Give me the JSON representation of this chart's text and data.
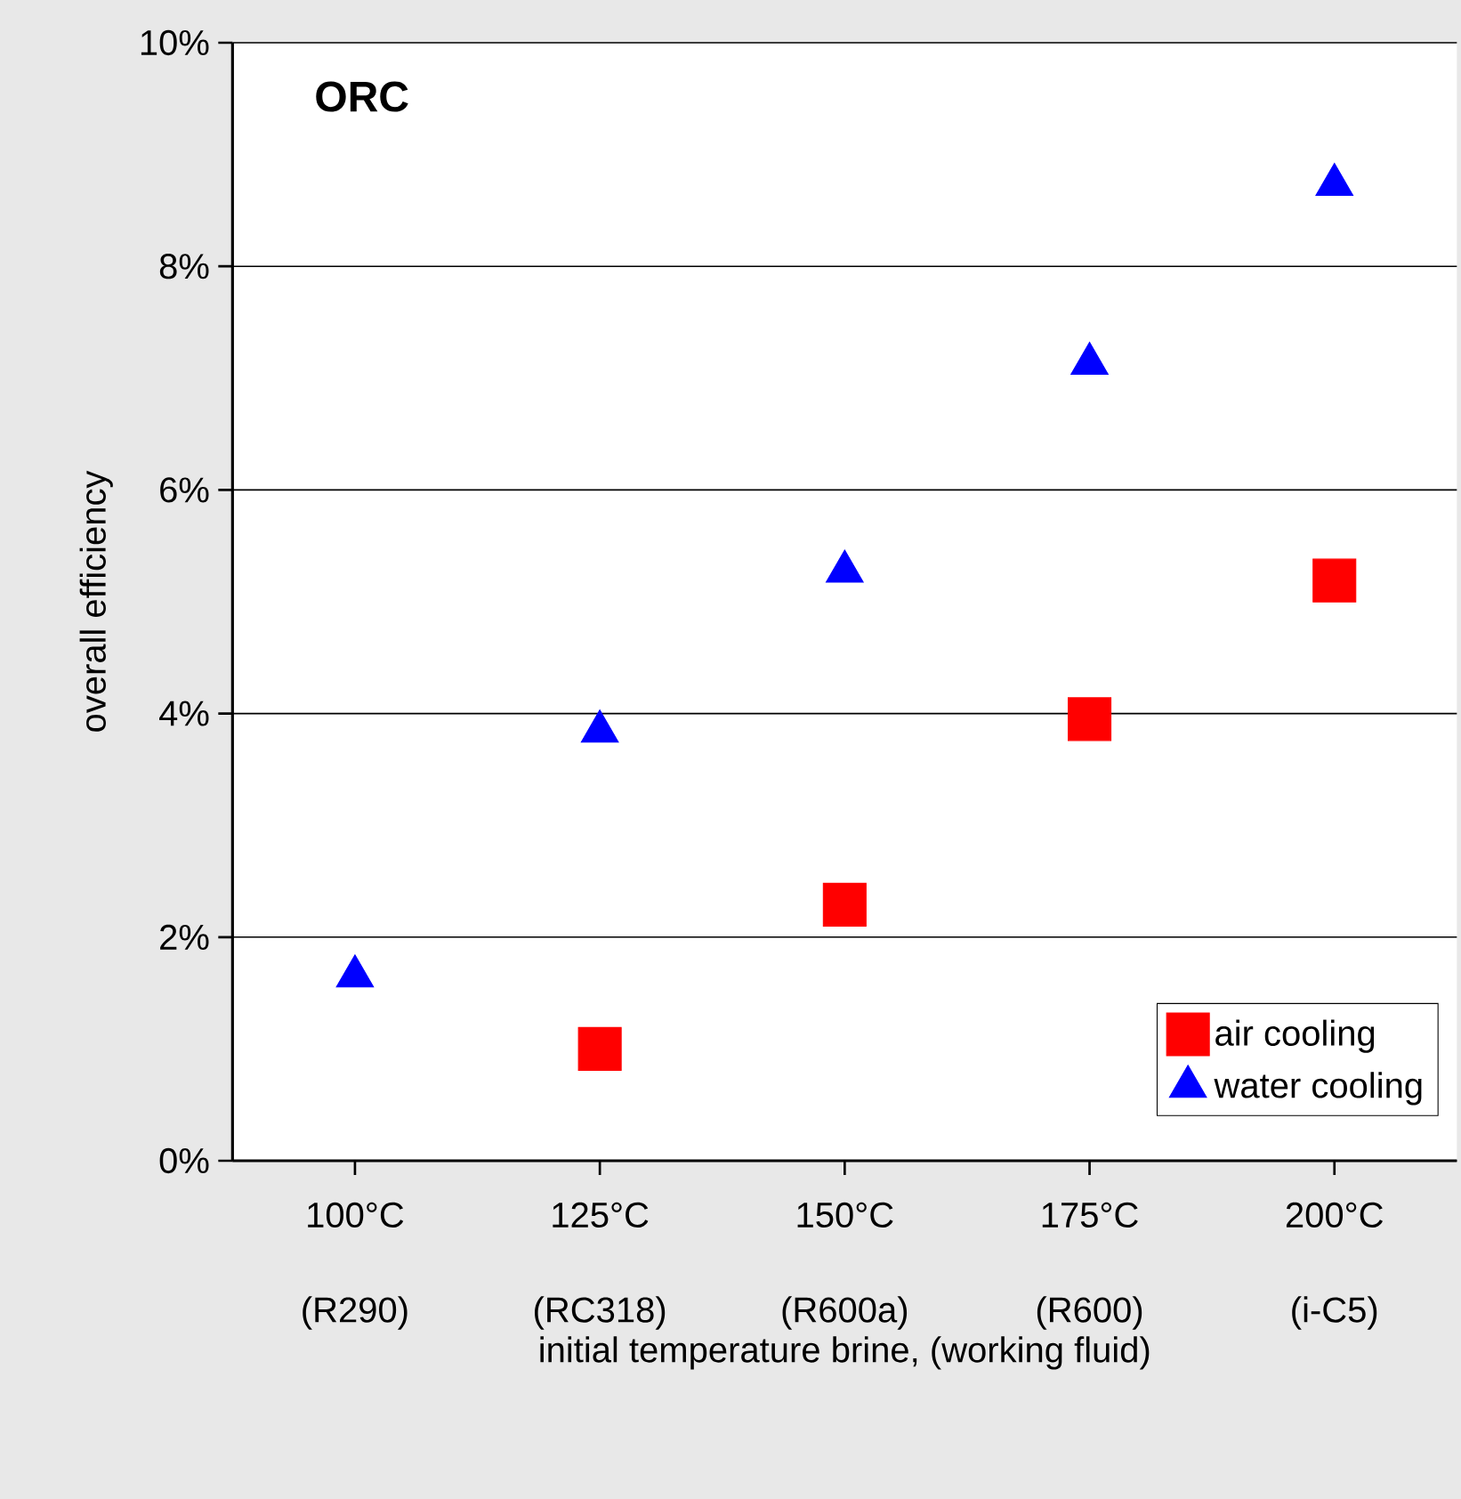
{
  "chart_data": {
    "type": "scatter",
    "title": "ORC",
    "xlabel": "initial temperature brine, (working fluid)",
    "ylabel": "overall efficiency",
    "categories": [
      "100°C (R290)",
      "125°C (RC318)",
      "150°C (R600a)",
      "175°C (R600)",
      "200°C (i-C5)"
    ],
    "series": [
      {
        "name": "air cooling",
        "color": "#ff0000",
        "marker": "square",
        "values": [
          null,
          1.0,
          2.29,
          3.95,
          5.19
        ]
      },
      {
        "name": "water cooling",
        "color": "#0000ff",
        "marker": "triangle",
        "values": [
          1.65,
          3.84,
          5.27,
          7.13,
          8.73
        ]
      }
    ],
    "ylim": [
      0,
      10
    ],
    "yticks": [
      {
        "value": 0,
        "label": "0%"
      },
      {
        "value": 2,
        "label": "2%"
      },
      {
        "value": 4,
        "label": "4%"
      },
      {
        "value": 6,
        "label": "6%"
      },
      {
        "value": 8,
        "label": "8%"
      },
      {
        "value": 10,
        "label": "10%"
      }
    ],
    "grid": "y",
    "legend": "bottom right"
  }
}
